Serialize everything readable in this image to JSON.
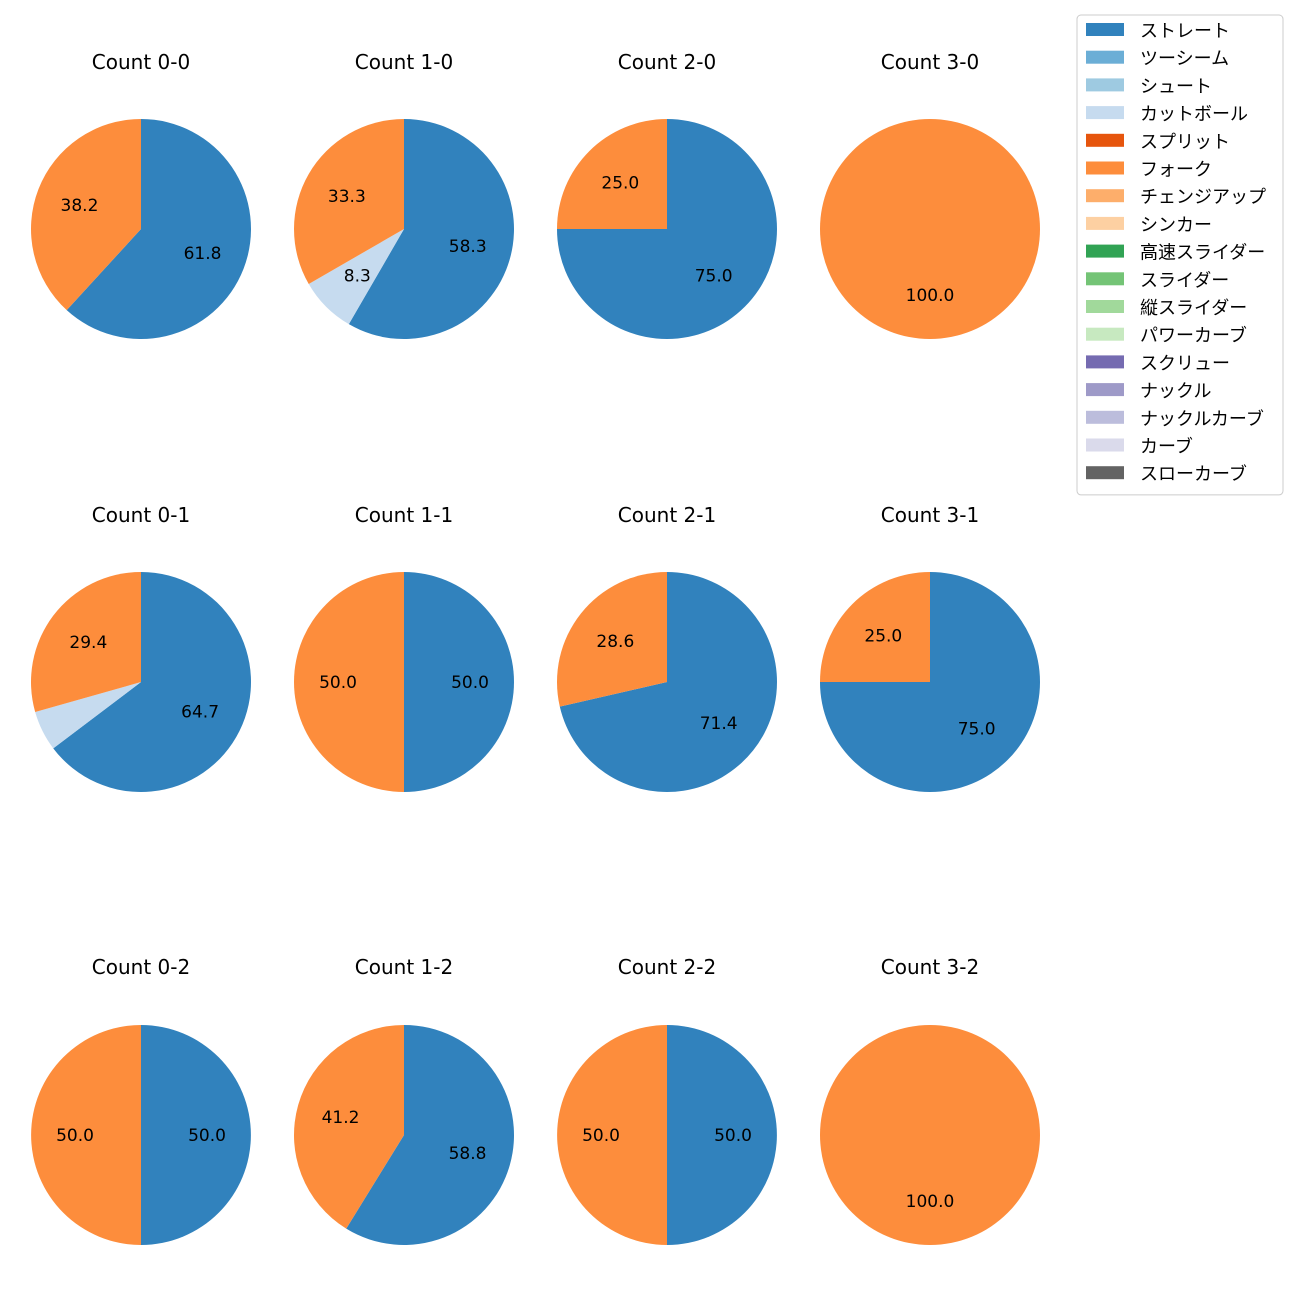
{
  "chart_data": {
    "type": "pie",
    "legend_position": "top-right",
    "categories": [
      "ストレート",
      "ツーシーム",
      "シュート",
      "カットボール",
      "スプリット",
      "フォーク",
      "チェンジアップ",
      "シンカー",
      "高速スライダー",
      "スライダー",
      "縦スライダー",
      "パワーカーブ",
      "スクリュー",
      "ナックル",
      "ナックルカーブ",
      "カーブ",
      "スローカーブ"
    ],
    "colors": [
      "#3182bd",
      "#6baed6",
      "#9ecae1",
      "#c6dbef",
      "#e6550d",
      "#fd8d3c",
      "#fdae6b",
      "#fdd0a2",
      "#31a354",
      "#74c476",
      "#a1d99b",
      "#c7e9c0",
      "#756bb1",
      "#9e9ac8",
      "#bcbddc",
      "#dadaeb",
      "#636363"
    ],
    "charts": [
      {
        "title": "Count 0-0",
        "slices": [
          {
            "category": "ストレート",
            "value": 61.8,
            "label": "61.8"
          },
          {
            "category": "フォーク",
            "value": 38.2,
            "label": "38.2"
          }
        ]
      },
      {
        "title": "Count 1-0",
        "slices": [
          {
            "category": "ストレート",
            "value": 58.3,
            "label": "58.3"
          },
          {
            "category": "カットボール",
            "value": 8.3,
            "label": "8.3"
          },
          {
            "category": "フォーク",
            "value": 33.3,
            "label": "33.3"
          }
        ]
      },
      {
        "title": "Count 2-0",
        "slices": [
          {
            "category": "ストレート",
            "value": 75.0,
            "label": "75.0"
          },
          {
            "category": "フォーク",
            "value": 25.0,
            "label": "25.0"
          }
        ]
      },
      {
        "title": "Count 3-0",
        "slices": [
          {
            "category": "フォーク",
            "value": 100.0,
            "label": "100.0"
          }
        ]
      },
      {
        "title": "Count 0-1",
        "slices": [
          {
            "category": "ストレート",
            "value": 64.7,
            "label": "64.7"
          },
          {
            "category": "カットボール",
            "value": 5.9,
            "label": ""
          },
          {
            "category": "フォーク",
            "value": 29.4,
            "label": "29.4"
          }
        ]
      },
      {
        "title": "Count 1-1",
        "slices": [
          {
            "category": "ストレート",
            "value": 50.0,
            "label": "50.0"
          },
          {
            "category": "フォーク",
            "value": 50.0,
            "label": "50.0"
          }
        ]
      },
      {
        "title": "Count 2-1",
        "slices": [
          {
            "category": "ストレート",
            "value": 71.4,
            "label": "71.4"
          },
          {
            "category": "フォーク",
            "value": 28.6,
            "label": "28.6"
          }
        ]
      },
      {
        "title": "Count 3-1",
        "slices": [
          {
            "category": "ストレート",
            "value": 75.0,
            "label": "75.0"
          },
          {
            "category": "フォーク",
            "value": 25.0,
            "label": "25.0"
          }
        ]
      },
      {
        "title": "Count 0-2",
        "slices": [
          {
            "category": "ストレート",
            "value": 50.0,
            "label": "50.0"
          },
          {
            "category": "フォーク",
            "value": 50.0,
            "label": "50.0"
          }
        ]
      },
      {
        "title": "Count 1-2",
        "slices": [
          {
            "category": "ストレート",
            "value": 58.8,
            "label": "58.8"
          },
          {
            "category": "フォーク",
            "value": 41.2,
            "label": "41.2"
          }
        ]
      },
      {
        "title": "Count 2-2",
        "slices": [
          {
            "category": "ストレート",
            "value": 50.0,
            "label": "50.0"
          },
          {
            "category": "フォーク",
            "value": 50.0,
            "label": "50.0"
          }
        ]
      },
      {
        "title": "Count 3-2",
        "slices": [
          {
            "category": "フォーク",
            "value": 100.0,
            "label": "100.0"
          }
        ]
      }
    ]
  }
}
